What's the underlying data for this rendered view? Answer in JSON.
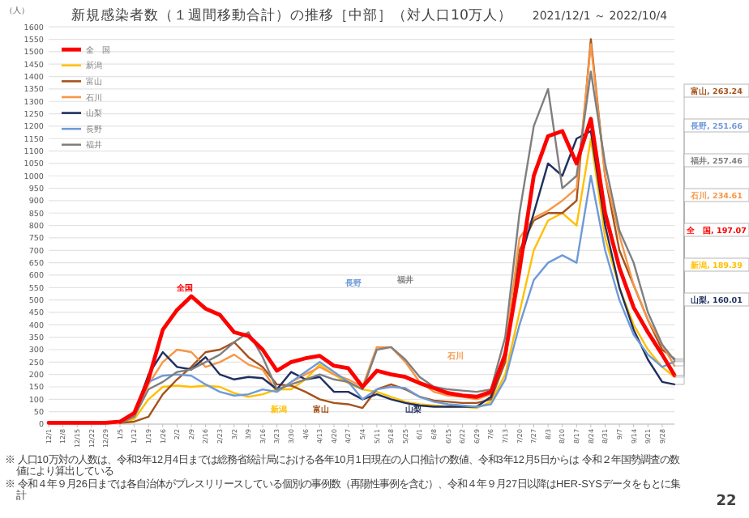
{
  "chart_data": {
    "type": "line",
    "title": "新規感染者数（１週間移動合計）の推移［中部］（対人口10万人）",
    "subtitle": "2021/12/1 ～ 2022/10/4",
    "ylabel": "（人）",
    "x": [
      "2021-12-01",
      "2021-12-08",
      "2021-12-15",
      "2021-12-22",
      "2021-12-29",
      "2022-01-05",
      "2022-01-12",
      "2022-01-19",
      "2022-01-26",
      "2022-02-02",
      "2022-02-09",
      "2022-02-16",
      "2022-02-23",
      "2022-03-02",
      "2022-03-09",
      "2022-03-16",
      "2022-03-23",
      "2022-03-30",
      "2022-04-06",
      "2022-04-13",
      "2022-04-20",
      "2022-04-27",
      "2022-05-04",
      "2022-05-11",
      "2022-05-18",
      "2022-05-25",
      "2022-06-01",
      "2022-06-08",
      "2022-06-15",
      "2022-06-22",
      "2022-06-29",
      "2022-07-06",
      "2022-07-13",
      "2022-07-20",
      "2022-07-27",
      "2022-08-03",
      "2022-08-10",
      "2022-08-17",
      "2022-08-24",
      "2022-08-31",
      "2022-09-07",
      "2022-09-14",
      "2022-09-21",
      "2022-09-28",
      "2022-10-04"
    ],
    "xlim": [
      "2021-12-01",
      "2022-10-04"
    ],
    "xticks": [
      {
        "value": "2021-12-01",
        "label": "12/1"
      },
      {
        "value": "2021-12-08",
        "label": "12/8"
      },
      {
        "value": "2021-12-15",
        "label": "12/15"
      },
      {
        "value": "2021-12-22",
        "label": "12/22"
      },
      {
        "value": "2021-12-29",
        "label": "12/29"
      },
      {
        "value": "2022-01-05",
        "label": "1/5"
      },
      {
        "value": "2022-01-12",
        "label": "1/12"
      },
      {
        "value": "2022-01-19",
        "label": "1/19"
      },
      {
        "value": "2022-01-26",
        "label": "1/26"
      },
      {
        "value": "2022-02-02",
        "label": "2/2"
      },
      {
        "value": "2022-02-09",
        "label": "2/9"
      },
      {
        "value": "2022-02-16",
        "label": "2/16"
      },
      {
        "value": "2022-02-23",
        "label": "2/23"
      },
      {
        "value": "2022-03-02",
        "label": "3/2"
      },
      {
        "value": "2022-03-09",
        "label": "3/9"
      },
      {
        "value": "2022-03-16",
        "label": "3/16"
      },
      {
        "value": "2022-03-23",
        "label": "3/23"
      },
      {
        "value": "2022-03-30",
        "label": "3/30"
      },
      {
        "value": "2022-04-06",
        "label": "4/6"
      },
      {
        "value": "2022-04-13",
        "label": "4/13"
      },
      {
        "value": "2022-04-20",
        "label": "4/20"
      },
      {
        "value": "2022-04-27",
        "label": "4/27"
      },
      {
        "value": "2022-05-04",
        "label": "5/4"
      },
      {
        "value": "2022-05-11",
        "label": "5/11"
      },
      {
        "value": "2022-05-18",
        "label": "5/18"
      },
      {
        "value": "2022-05-25",
        "label": "5/25"
      },
      {
        "value": "2022-06-01",
        "label": "6/1"
      },
      {
        "value": "2022-06-08",
        "label": "6/8"
      },
      {
        "value": "2022-06-15",
        "label": "6/15"
      },
      {
        "value": "2022-06-22",
        "label": "6/22"
      },
      {
        "value": "2022-06-29",
        "label": "6/29"
      },
      {
        "value": "2022-07-06",
        "label": "7/6"
      },
      {
        "value": "2022-07-13",
        "label": "7/13"
      },
      {
        "value": "2022-07-20",
        "label": "7/20"
      },
      {
        "value": "2022-07-27",
        "label": "7/27"
      },
      {
        "value": "2022-08-03",
        "label": "8/3"
      },
      {
        "value": "2022-08-10",
        "label": "8/10"
      },
      {
        "value": "2022-08-17",
        "label": "8/17"
      },
      {
        "value": "2022-08-24",
        "label": "8/24"
      },
      {
        "value": "2022-08-31",
        "label": "8/31"
      },
      {
        "value": "2022-09-07",
        "label": "9/7"
      },
      {
        "value": "2022-09-14",
        "label": "9/14"
      },
      {
        "value": "2022-09-21",
        "label": "9/21"
      },
      {
        "value": "2022-09-28",
        "label": "9/28"
      }
    ],
    "ylim": [
      0,
      1600
    ],
    "yticks": [
      0,
      50,
      100,
      150,
      200,
      250,
      300,
      350,
      400,
      450,
      500,
      550,
      600,
      650,
      700,
      750,
      800,
      850,
      900,
      950,
      1000,
      1050,
      1100,
      1150,
      1200,
      1250,
      1300,
      1350,
      1400,
      1450,
      1500,
      1550,
      1600
    ],
    "grid": "y",
    "legend": "top left",
    "marker": "none",
    "line_style": "solid",
    "series": [
      {
        "name": "全　国",
        "color": "#ff0000",
        "values": [
          5,
          5,
          5,
          5,
          5,
          10,
          45,
          180,
          380,
          460,
          515,
          465,
          440,
          370,
          355,
          300,
          215,
          250,
          265,
          275,
          235,
          225,
          150,
          215,
          200,
          190,
          165,
          145,
          125,
          115,
          110,
          130,
          280,
          620,
          1000,
          1160,
          1180,
          1050,
          1230,
          850,
          630,
          470,
          370,
          280,
          197.07
        ]
      },
      {
        "name": "新潟",
        "color": "#ffc000",
        "values": [
          null,
          null,
          null,
          null,
          null,
          5,
          20,
          100,
          150,
          155,
          150,
          155,
          150,
          125,
          110,
          120,
          140,
          140,
          180,
          240,
          200,
          165,
          140,
          130,
          110,
          90,
          80,
          75,
          70,
          70,
          65,
          90,
          200,
          450,
          700,
          820,
          850,
          800,
          1150,
          750,
          550,
          400,
          300,
          230,
          189.39
        ]
      },
      {
        "name": "富山",
        "color": "#a5521b",
        "values": [
          null,
          null,
          null,
          null,
          null,
          5,
          10,
          30,
          120,
          180,
          230,
          290,
          300,
          330,
          270,
          230,
          160,
          155,
          130,
          100,
          85,
          80,
          65,
          140,
          160,
          140,
          110,
          95,
          90,
          85,
          85,
          100,
          250,
          700,
          820,
          850,
          850,
          900,
          1550,
          1000,
          700,
          560,
          420,
          300,
          263.24
        ]
      },
      {
        "name": "石川",
        "color": "#f79646",
        "values": [
          null,
          null,
          null,
          null,
          null,
          5,
          30,
          160,
          250,
          300,
          290,
          230,
          250,
          280,
          240,
          220,
          130,
          170,
          200,
          230,
          200,
          180,
          150,
          310,
          310,
          250,
          170,
          130,
          115,
          110,
          100,
          120,
          300,
          750,
          830,
          860,
          900,
          950,
          1530,
          1000,
          760,
          560,
          420,
          320,
          234.61
        ]
      },
      {
        "name": "山梨",
        "color": "#1f2f5f",
        "values": [
          null,
          null,
          null,
          null,
          null,
          5,
          40,
          200,
          290,
          230,
          220,
          270,
          200,
          180,
          190,
          185,
          140,
          210,
          180,
          190,
          130,
          130,
          100,
          120,
          100,
          85,
          75,
          70,
          70,
          70,
          70,
          110,
          280,
          650,
          850,
          1050,
          1000,
          1150,
          1180,
          800,
          550,
          380,
          260,
          170,
          160.01
        ]
      },
      {
        "name": "長野",
        "color": "#6f9ad8",
        "values": [
          null,
          null,
          null,
          null,
          null,
          5,
          35,
          170,
          195,
          200,
          195,
          160,
          130,
          115,
          120,
          140,
          130,
          170,
          210,
          250,
          210,
          170,
          100,
          140,
          150,
          145,
          110,
          90,
          80,
          75,
          70,
          80,
          180,
          400,
          580,
          650,
          680,
          650,
          1000,
          700,
          500,
          360,
          280,
          230,
          251.66
        ]
      },
      {
        "name": "福井",
        "color": "#7f7f7f",
        "values": [
          null,
          null,
          null,
          null,
          null,
          5,
          30,
          140,
          170,
          210,
          220,
          250,
          280,
          330,
          370,
          270,
          140,
          160,
          180,
          200,
          180,
          170,
          140,
          300,
          310,
          260,
          190,
          150,
          140,
          135,
          130,
          140,
          350,
          850,
          1200,
          1350,
          950,
          1000,
          1420,
          1050,
          780,
          650,
          450,
          320,
          257.46
        ]
      }
    ],
    "annotations": [
      "全国",
      "新潟",
      "富山",
      "石川",
      "山梨",
      "長野",
      "福井",
      {
        "text": "富山, 263.24",
        "x": "2022-10-04",
        "y": 263.24
      },
      {
        "text": "長野, 251.66",
        "x": "2022-10-04",
        "y": 251.66
      },
      {
        "text": "福井, 257.46",
        "x": "2022-10-04",
        "y": 257.46
      },
      {
        "text": "石川, 234.61",
        "x": "2022-10-04",
        "y": 234.61
      },
      {
        "text": "全　国, 197.07",
        "x": "2022-10-04",
        "y": 197.07
      },
      {
        "text": "新潟, 189.39",
        "x": "2022-10-04",
        "y": 189.39
      },
      {
        "text": "山梨, 160.01",
        "x": "2022-10-04",
        "y": 160.01
      },
      "※ 人口10万対の人数は、令和3年12月4日までは総務省統計局における各年10月1日現在の人口推計の数値、令和3年12月5日からは 令和２年国勢調査の数値により算出している",
      "※ 令和４年９月26日までは各自治体がプレスリリースしている個別の事例数（再陽性事例を含む）、令和４年９月27日以降はHER-SYSデータをもとに集計",
      "22"
    ]
  }
}
